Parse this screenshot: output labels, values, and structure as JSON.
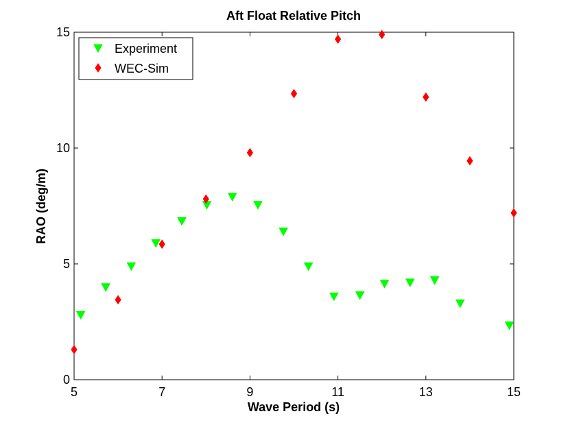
{
  "chart_data": {
    "type": "scatter",
    "title": "Aft Float Relative Pitch",
    "xlabel": "Wave Period (s)",
    "ylabel": "RAO (deg/m)",
    "xlim": [
      5,
      15
    ],
    "ylim": [
      0,
      15
    ],
    "xticks": [
      5,
      7,
      9,
      11,
      13,
      15
    ],
    "yticks": [
      0,
      5,
      10,
      15
    ],
    "grid": false,
    "legend_position": "top-left",
    "series": [
      {
        "name": "Experiment",
        "marker": "triangle-down",
        "color": "#00ff00",
        "x": [
          5.15,
          5.72,
          6.3,
          6.86,
          7.45,
          8.02,
          8.6,
          9.18,
          9.76,
          10.33,
          10.91,
          11.5,
          12.06,
          12.64,
          13.2,
          13.78,
          14.9
        ],
        "y": [
          2.8,
          4.0,
          4.9,
          5.9,
          6.85,
          7.55,
          7.9,
          7.55,
          6.4,
          4.9,
          3.6,
          3.65,
          4.15,
          4.2,
          4.3,
          3.3,
          2.35
        ]
      },
      {
        "name": "WEC-Sim",
        "marker": "diamond",
        "color": "#ff0000",
        "x": [
          5,
          6,
          7,
          8,
          9,
          10,
          11,
          12,
          13,
          14,
          15
        ],
        "y": [
          1.3,
          3.45,
          5.85,
          7.8,
          9.8,
          12.35,
          14.7,
          14.9,
          12.2,
          9.45,
          7.2
        ]
      }
    ]
  }
}
